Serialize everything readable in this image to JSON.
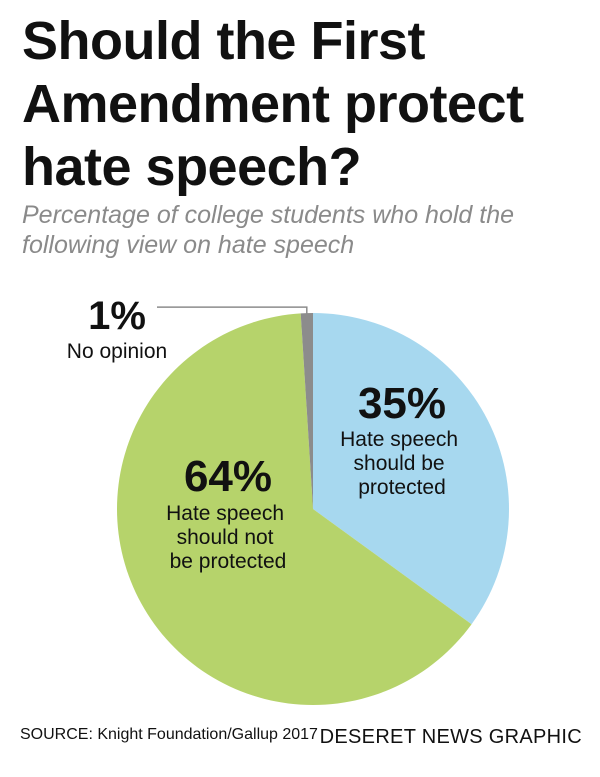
{
  "header": {
    "title": "Should the First Amendment protect hate speech?",
    "subtitle": "Percentage of college students who hold the following view on hate speech"
  },
  "chart_data": {
    "type": "pie",
    "title": "Should the First Amendment protect hate speech?",
    "subtitle": "Percentage of college students who hold the following view on hate speech",
    "slices": [
      {
        "value": 35,
        "pct_label": "35%",
        "label_lines": [
          "Hate speech",
          "should be",
          "protected"
        ],
        "color": "#a7d8ef"
      },
      {
        "value": 64,
        "pct_label": "64%",
        "label_lines": [
          "Hate speech",
          "should not",
          "be protected"
        ],
        "color": "#b6d36b"
      },
      {
        "value": 1,
        "pct_label": "1%",
        "label_lines": [
          "No opinion"
        ],
        "color": "#8c8c8c"
      }
    ]
  },
  "footer": {
    "source": "SOURCE: Knight Foundation/Gallup 2017",
    "credit": "DESERET NEWS GRAPHIC"
  }
}
